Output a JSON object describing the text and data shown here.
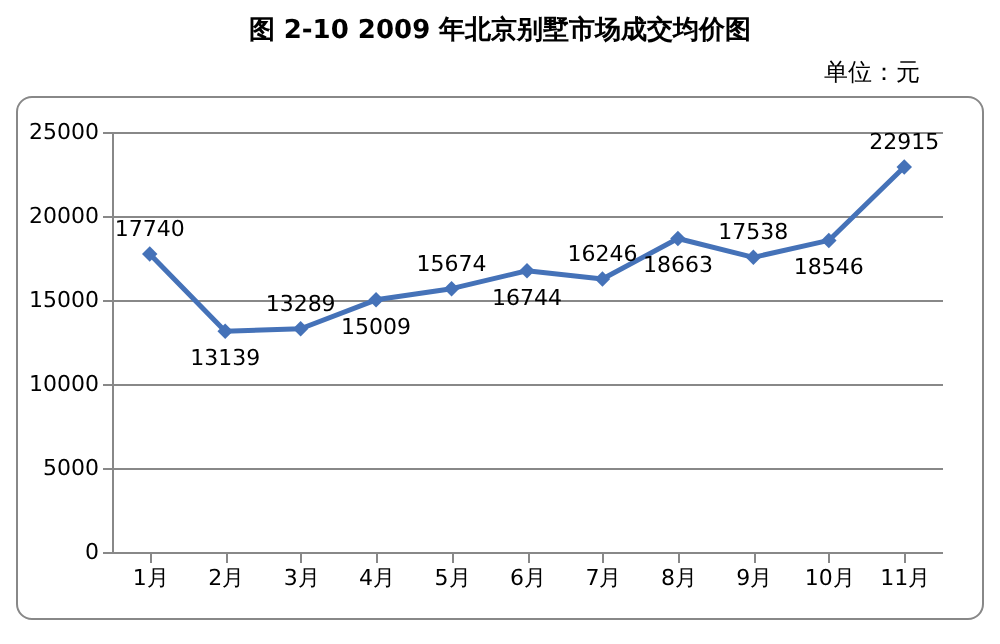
{
  "chart_data": {
    "type": "line",
    "title": "图 2-10   2009 年北京别墅市场成交均价图",
    "annotations": [
      "单位：元"
    ],
    "categories": [
      "1月",
      "2月",
      "3月",
      "4月",
      "5月",
      "6月",
      "7月",
      "8月",
      "9月",
      "10月",
      "11月"
    ],
    "series": [
      {
        "color": "#4572b8",
        "values": [
          17740,
          13139,
          13289,
          15009,
          15674,
          16744,
          16246,
          18663,
          17538,
          18546,
          22915
        ]
      }
    ],
    "ylim": [
      0,
      25000
    ],
    "yticks": [
      0,
      5000,
      10000,
      15000,
      20000,
      25000
    ],
    "grid": "y",
    "marker": "diamond",
    "line_style": "solid",
    "data_labels": true
  }
}
